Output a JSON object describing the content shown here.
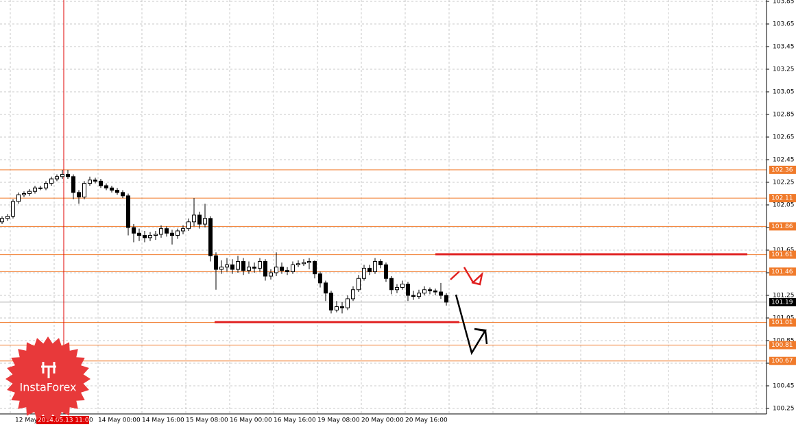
{
  "chart_data": {
    "type": "candlestick",
    "ylim": [
      100.25,
      103.85
    ],
    "yticks": [
      103.85,
      103.65,
      103.45,
      103.25,
      103.05,
      102.85,
      102.65,
      102.45,
      102.25,
      102.05,
      101.85,
      101.65,
      101.45,
      101.25,
      101.05,
      100.85,
      100.65,
      100.45,
      100.25
    ],
    "levels": [
      102.36,
      102.11,
      101.86,
      101.61,
      101.46,
      101.01,
      100.81,
      100.67
    ],
    "current_price": 101.19,
    "time_labels": [
      "00",
      "12 May",
      "2014.05.13 11:00",
      "0",
      "14 May 00:00",
      "14 May 16:00",
      "15 May 08:00",
      "16 May 00:00",
      "16 May 16:00",
      "19 May 08:00",
      "20 May 00:00",
      "20 May 16:00"
    ],
    "highlighted_time_label": 2,
    "logo": "InstaForex",
    "candles": [
      [
        101.9,
        101.95,
        101.88,
        101.93
      ],
      [
        101.93,
        101.97,
        101.91,
        101.95
      ],
      [
        101.95,
        102.1,
        101.93,
        102.08
      ],
      [
        102.08,
        102.16,
        102.06,
        102.14
      ],
      [
        102.14,
        102.17,
        102.12,
        102.15
      ],
      [
        102.15,
        102.19,
        102.13,
        102.17
      ],
      [
        102.17,
        102.22,
        102.15,
        102.2
      ],
      [
        102.2,
        102.22,
        102.18,
        102.2
      ],
      [
        102.2,
        102.26,
        102.18,
        102.24
      ],
      [
        102.24,
        102.3,
        102.22,
        102.28
      ],
      [
        102.28,
        102.32,
        102.26,
        102.3
      ],
      [
        102.3,
        102.36,
        102.28,
        102.32
      ],
      [
        102.32,
        102.36,
        102.28,
        102.3
      ],
      [
        102.3,
        102.32,
        102.1,
        102.16
      ],
      [
        102.16,
        102.18,
        102.06,
        102.12
      ],
      [
        102.12,
        102.26,
        102.1,
        102.24
      ],
      [
        102.24,
        102.3,
        102.22,
        102.27
      ],
      [
        102.27,
        102.29,
        102.24,
        102.26
      ],
      [
        102.26,
        102.28,
        102.2,
        102.22
      ],
      [
        102.22,
        102.24,
        102.18,
        102.2
      ],
      [
        102.2,
        102.22,
        102.16,
        102.18
      ],
      [
        102.18,
        102.2,
        102.14,
        102.16
      ],
      [
        102.16,
        102.18,
        102.11,
        102.13
      ],
      [
        102.13,
        102.15,
        101.78,
        101.85
      ],
      [
        101.85,
        101.88,
        101.72,
        101.8
      ],
      [
        101.8,
        101.84,
        101.73,
        101.78
      ],
      [
        101.78,
        101.82,
        101.72,
        101.76
      ],
      [
        101.76,
        101.81,
        101.73,
        101.78
      ],
      [
        101.78,
        101.82,
        101.74,
        101.79
      ],
      [
        101.79,
        101.87,
        101.76,
        101.84
      ],
      [
        101.84,
        101.86,
        101.77,
        101.8
      ],
      [
        101.8,
        101.83,
        101.7,
        101.78
      ],
      [
        101.78,
        101.84,
        101.75,
        101.82
      ],
      [
        101.82,
        101.87,
        101.79,
        101.84
      ],
      [
        101.84,
        101.93,
        101.82,
        101.9
      ],
      [
        101.9,
        102.11,
        101.86,
        101.96
      ],
      [
        101.96,
        101.99,
        101.84,
        101.88
      ],
      [
        101.88,
        102.06,
        101.85,
        101.93
      ],
      [
        101.93,
        101.95,
        101.55,
        101.6
      ],
      [
        101.6,
        101.63,
        101.3,
        101.48
      ],
      [
        101.48,
        101.56,
        101.44,
        101.5
      ],
      [
        101.5,
        101.58,
        101.46,
        101.52
      ],
      [
        101.52,
        101.57,
        101.44,
        101.48
      ],
      [
        101.48,
        101.6,
        101.45,
        101.55
      ],
      [
        101.55,
        101.58,
        101.43,
        101.47
      ],
      [
        101.47,
        101.55,
        101.44,
        101.5
      ],
      [
        101.5,
        101.54,
        101.45,
        101.49
      ],
      [
        101.49,
        101.58,
        101.46,
        101.55
      ],
      [
        101.55,
        101.57,
        101.38,
        101.42
      ],
      [
        101.42,
        101.48,
        101.39,
        101.45
      ],
      [
        101.45,
        101.63,
        101.42,
        101.5
      ],
      [
        101.5,
        101.54,
        101.44,
        101.47
      ],
      [
        101.47,
        101.5,
        101.43,
        101.46
      ],
      [
        101.46,
        101.55,
        101.44,
        101.52
      ],
      [
        101.52,
        101.56,
        101.5,
        101.53
      ],
      [
        101.53,
        101.57,
        101.51,
        101.54
      ],
      [
        101.54,
        101.58,
        101.48,
        101.55
      ],
      [
        101.55,
        101.56,
        101.4,
        101.44
      ],
      [
        101.44,
        101.46,
        101.32,
        101.36
      ],
      [
        101.36,
        101.38,
        101.2,
        101.27
      ],
      [
        101.27,
        101.29,
        101.09,
        101.12
      ],
      [
        101.12,
        101.2,
        101.1,
        101.15
      ],
      [
        101.15,
        101.19,
        101.09,
        101.14
      ],
      [
        101.14,
        101.25,
        101.12,
        101.22
      ],
      [
        101.22,
        101.33,
        101.2,
        101.3
      ],
      [
        101.3,
        101.43,
        101.28,
        101.4
      ],
      [
        101.4,
        101.52,
        101.38,
        101.49
      ],
      [
        101.49,
        101.52,
        101.43,
        101.46
      ],
      [
        101.46,
        101.58,
        101.44,
        101.55
      ],
      [
        101.55,
        101.57,
        101.49,
        101.52
      ],
      [
        101.52,
        101.54,
        101.37,
        101.4
      ],
      [
        101.4,
        101.42,
        101.26,
        101.3
      ],
      [
        101.3,
        101.35,
        101.27,
        101.32
      ],
      [
        101.32,
        101.38,
        101.3,
        101.35
      ],
      [
        101.35,
        101.37,
        101.2,
        101.25
      ],
      [
        101.25,
        101.29,
        101.21,
        101.24
      ],
      [
        101.24,
        101.3,
        101.22,
        101.27
      ],
      [
        101.27,
        101.33,
        101.25,
        101.3
      ],
      [
        101.3,
        101.32,
        101.26,
        101.29
      ],
      [
        101.29,
        101.31,
        101.25,
        101.28
      ],
      [
        101.28,
        101.36,
        101.22,
        101.25
      ],
      [
        101.25,
        101.27,
        101.16,
        101.19
      ]
    ]
  }
}
